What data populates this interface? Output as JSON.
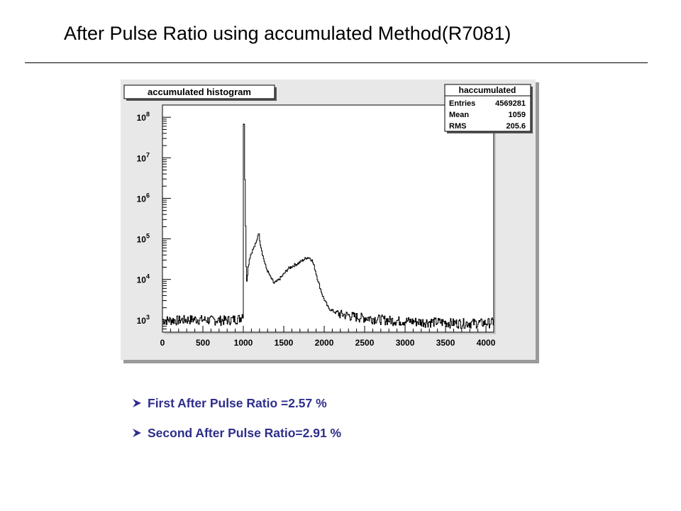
{
  "slide": {
    "title": "After Pulse Ratio using accumulated Method(R7081)",
    "bullets": [
      {
        "icon": "arrowhead-bullet-icon",
        "text": "First After Pulse Ratio =2.57 %"
      },
      {
        "icon": "arrowhead-bullet-icon",
        "text": "Second After Pulse Ratio=2.91 %"
      }
    ],
    "colors": {
      "bullet_text": "#2e2e8c",
      "frame_bg": "#e8e8e8",
      "plot_bg": "#ffffff",
      "line": "#000000"
    }
  },
  "chart_data": {
    "type": "line",
    "title": "accumulated histogram",
    "xlabel": "",
    "ylabel": "",
    "xlim": [
      0,
      4096
    ],
    "ylim": [
      500,
      200000000
    ],
    "y_scale": "log",
    "grid": false,
    "x_ticks": [
      "0",
      "500",
      "1000",
      "1500",
      "2000",
      "2500",
      "3000",
      "3500",
      "4000"
    ],
    "y_ticks": [
      {
        "base": "10",
        "exp": "3"
      },
      {
        "base": "10",
        "exp": "4"
      },
      {
        "base": "10",
        "exp": "5"
      },
      {
        "base": "10",
        "exp": "6"
      },
      {
        "base": "10",
        "exp": "7"
      },
      {
        "base": "10",
        "exp": "8"
      }
    ],
    "stats_box": {
      "title": "haccumulated",
      "placement": "top-right",
      "rows": [
        {
          "label": "Entries",
          "value": "4569281"
        },
        {
          "label": "Mean",
          "value": "1059"
        },
        {
          "label": "RMS",
          "value": "205.6"
        }
      ]
    },
    "series": [
      {
        "x": [
          0,
          200,
          400,
          600,
          800,
          960,
          1000,
          1010,
          1020,
          1030,
          1040,
          1060,
          1080,
          1100,
          1130,
          1160,
          1190,
          1210,
          1240,
          1280,
          1330,
          1380,
          1420,
          1480,
          1550,
          1620,
          1680,
          1740,
          1790,
          1820,
          1850,
          1880,
          1920,
          1980,
          2050,
          2100,
          2150,
          2200,
          2300,
          2400,
          2600,
          2800,
          3000,
          3200,
          3400,
          3600,
          3800,
          4000,
          4096
        ],
        "y": [
          1000,
          1000,
          1050,
          1000,
          1000,
          1100,
          1500,
          70000000,
          3000000,
          100000,
          8000,
          20000,
          35000,
          45000,
          60000,
          80000,
          150000,
          80000,
          40000,
          20000,
          12000,
          8000,
          9000,
          12000,
          18000,
          22000,
          25000,
          30000,
          35000,
          34000,
          30000,
          20000,
          10000,
          4000,
          2000,
          1700,
          1500,
          1400,
          1300,
          1200,
          1100,
          1000,
          950,
          900,
          900,
          850,
          850,
          850,
          900
        ]
      }
    ]
  }
}
